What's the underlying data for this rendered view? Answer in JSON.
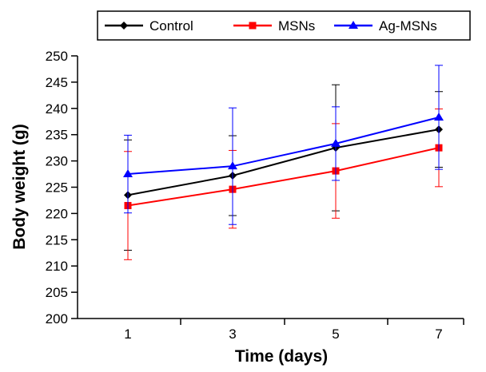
{
  "chart_data": {
    "type": "line",
    "x": [
      1,
      3,
      5,
      7
    ],
    "xlabel": "Time (days)",
    "ylabel": "Body weight (g)",
    "ylim": [
      200,
      250
    ],
    "yticks": [
      200,
      205,
      210,
      215,
      220,
      225,
      230,
      235,
      240,
      245,
      250
    ],
    "xticks": [
      1,
      3,
      5,
      7
    ],
    "grid": false,
    "legend_position": "top",
    "series": [
      {
        "name": "Control",
        "color": "#000000",
        "marker": "diamond",
        "values": [
          223.5,
          227.2,
          232.5,
          236.0
        ],
        "error_upper": [
          234.0,
          234.8,
          244.5,
          243.2
        ],
        "error_lower": [
          213.0,
          219.6,
          220.5,
          228.8
        ]
      },
      {
        "name": "MSNs",
        "color": "#ff0000",
        "marker": "square",
        "values": [
          221.5,
          224.6,
          228.1,
          232.5
        ],
        "error_upper": [
          231.8,
          232.0,
          237.1,
          239.9
        ],
        "error_lower": [
          211.2,
          217.2,
          219.1,
          225.1
        ]
      },
      {
        "name": "Ag-MSNs",
        "color": "#0000ff",
        "marker": "triangle",
        "values": [
          227.5,
          229.0,
          233.3,
          238.3
        ],
        "error_upper": [
          234.9,
          240.1,
          240.3,
          248.2
        ],
        "error_lower": [
          220.1,
          217.9,
          226.3,
          228.4
        ]
      }
    ]
  }
}
